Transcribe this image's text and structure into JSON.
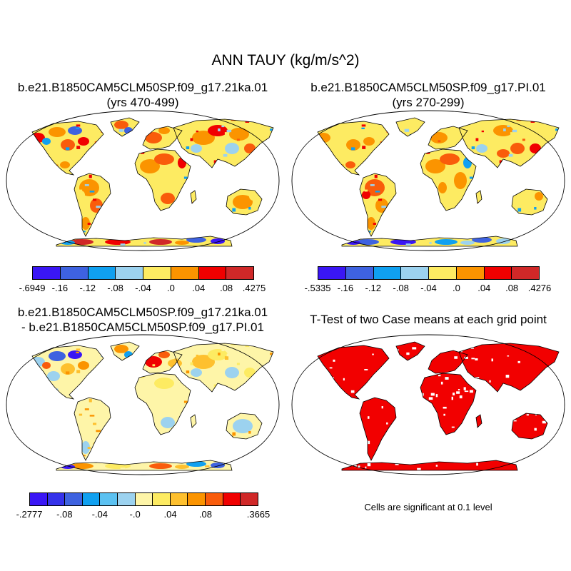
{
  "main_title": "ANN TAUY (kg/m/s^2)",
  "colors": {
    "blue_dark": "#3a16f5",
    "blue": "#3e62e0",
    "blue_light": "#10a0f0",
    "blue_pale": "#9cd2ef",
    "yellow_pale": "#fef5a8",
    "yellow": "#fdeb62",
    "gold": "#fec02e",
    "orange": "#fb9400",
    "orange_red": "#f95c0b",
    "red": "#f00000",
    "dark_red": "#d02828",
    "sig_red": "#f20000"
  },
  "panels": [
    {
      "title_line1": "b.e21.B1850CAM5CLM50SP.f09_g17.21ka.01",
      "title_line2": "(yrs 470-499)",
      "colorbar": {
        "colors": [
          "#3a16f5",
          "#3e62e0",
          "#10a0f0",
          "#9cd2ef",
          "#fdeb62",
          "#fb9400",
          "#f00000",
          "#d02828"
        ],
        "labels": [
          "-.6949",
          "-.16",
          "-.12",
          "-.08",
          "-.04",
          ".0",
          ".04",
          ".08",
          ".4275"
        ]
      }
    },
    {
      "title_line1": "b.e21.B1850CAM5CLM50SP.f09_g17.PI.01",
      "title_line2": "(yrs 270-299)",
      "colorbar": {
        "colors": [
          "#3a16f5",
          "#3e62e0",
          "#10a0f0",
          "#9cd2ef",
          "#fdeb62",
          "#fb9400",
          "#f00000",
          "#d02828"
        ],
        "labels": [
          "-.5335",
          "-.16",
          "-.12",
          "-.08",
          "-.04",
          ".0",
          ".04",
          ".08",
          ".4276"
        ]
      }
    },
    {
      "title_line1": "b.e21.B1850CAM5CLM50SP.f09_g17.21ka.01",
      "title_line2": "- b.e21.B1850CAM5CLM50SP.f09_g17.PI.01",
      "colorbar": {
        "colors": [
          "#3a16f5",
          "#3532ea",
          "#3e62e0",
          "#10a0f0",
          "#5bc1f1",
          "#9cd2ef",
          "#fef5a8",
          "#fdeb62",
          "#fec02e",
          "#fb9400",
          "#f95c0b",
          "#f00000",
          "#d02828"
        ],
        "labels": [
          "-.2777",
          "-.08",
          "-.04",
          "-.0",
          ".04",
          ".08",
          ".3665"
        ]
      }
    },
    {
      "title_line1": "T-Test of two Case means at each grid point",
      "note": "Cells are significant at 0.1 level"
    }
  ]
}
